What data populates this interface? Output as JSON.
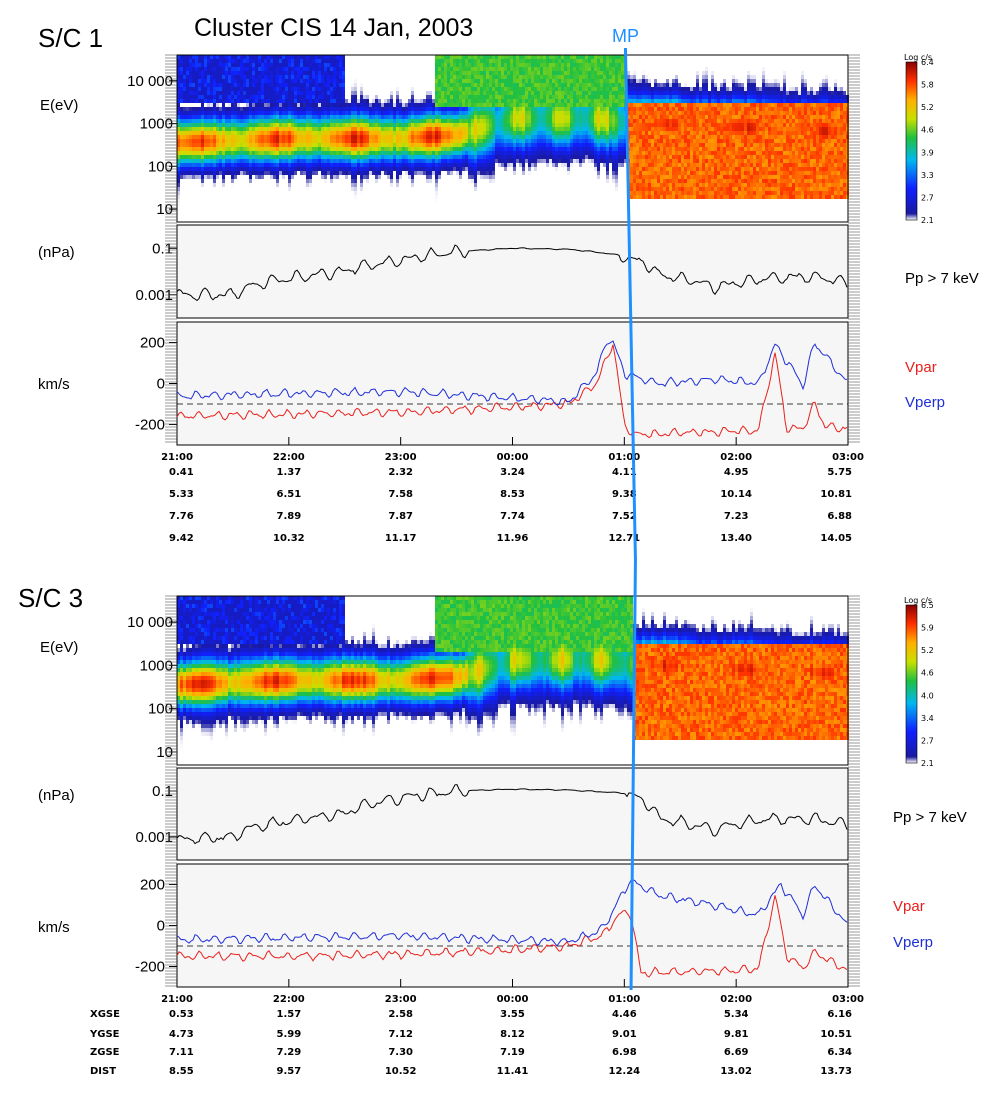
{
  "title": "Cluster CIS   14 Jan, 2003",
  "mp_label": "MP",
  "colors": {
    "mp_line": "#1e90ff",
    "vpar": "#e8211c",
    "vperp": "#1f2fd6",
    "pressure": "#000000",
    "panel_bg": "#f6f6f6"
  },
  "time_ticks": [
    "21:00",
    "22:00",
    "23:00",
    "00:00",
    "01:00",
    "02:00",
    "03:00"
  ],
  "panels": [
    {
      "spacecraft": "S/C 1",
      "mp_time_h": 4.01,
      "energy": {
        "ylabel": "E(eV)",
        "ticks": [
          "10 000",
          "1000",
          "100",
          "10"
        ]
      },
      "colorbar": {
        "unit": "Log c/s",
        "ticks": [
          "6.4",
          "5.8",
          "5.2",
          "4.6",
          "3.9",
          "3.3",
          "2.7",
          "2.1"
        ]
      },
      "pressure": {
        "ylabel": "(nPa)",
        "ticks": [
          "0.1",
          "0.001"
        ],
        "legend": "Pp > 7 keV"
      },
      "velocity": {
        "ylabel": "km/s",
        "ticks": [
          "200",
          "0",
          "-200"
        ],
        "ylim": [
          -300,
          300
        ],
        "legend": [
          "Vpar",
          "Vperp"
        ]
      },
      "ephemeris": {
        "labels": [
          "",
          "",
          "",
          ""
        ],
        "rows": [
          [
            "0.41",
            "1.37",
            "2.32",
            "3.24",
            "4.11",
            "4.95",
            "5.75"
          ],
          [
            "5.33",
            "6.51",
            "7.58",
            "8.53",
            "9.38",
            "10.14",
            "10.81"
          ],
          [
            "7.76",
            "7.89",
            "7.87",
            "7.74",
            "7.52",
            "7.23",
            "6.88"
          ],
          [
            "9.42",
            "10.32",
            "11.17",
            "11.96",
            "12.71",
            "13.40",
            "14.05"
          ]
        ]
      }
    },
    {
      "spacecraft": "S/C 3",
      "mp_time_h": 4.06,
      "energy": {
        "ylabel": "E(eV)",
        "ticks": [
          "10 000",
          "1000",
          "100",
          "10"
        ]
      },
      "colorbar": {
        "unit": "Log c/s",
        "ticks": [
          "6.5",
          "5.9",
          "5.2",
          "4.6",
          "4.0",
          "3.4",
          "2.7",
          "2.1"
        ]
      },
      "pressure": {
        "ylabel": "(nPa)",
        "ticks": [
          "0.1",
          "0.001"
        ],
        "legend": "Pp > 7 keV"
      },
      "velocity": {
        "ylabel": "km/s",
        "ticks": [
          "200",
          "0",
          "-200"
        ],
        "ylim": [
          -300,
          300
        ],
        "legend": [
          "Vpar",
          "Vperp"
        ]
      },
      "ephemeris": {
        "labels": [
          "XGSE",
          "YGSE",
          "ZGSE",
          "DIST"
        ],
        "rows": [
          [
            "0.53",
            "1.57",
            "2.58",
            "3.55",
            "4.46",
            "5.34",
            "6.16"
          ],
          [
            "4.73",
            "5.99",
            "7.12",
            "8.12",
            "9.01",
            "9.81",
            "10.51"
          ],
          [
            "7.11",
            "7.29",
            "7.30",
            "7.19",
            "6.98",
            "6.69",
            "6.34"
          ],
          [
            "8.55",
            "9.57",
            "10.52",
            "11.41",
            "12.24",
            "13.02",
            "13.73"
          ]
        ]
      }
    }
  ],
  "chart_data": [
    {
      "type": "heatmap",
      "title": "Cluster CIS   14 Jan, 2003",
      "spacecraft": "S/C 1",
      "xlabel": "",
      "x_ticks": [
        "21:00",
        "22:00",
        "23:00",
        "00:00",
        "01:00",
        "02:00",
        "03:00"
      ],
      "xlim_hours_from_2100": [
        0,
        6
      ],
      "ylabel": "E(eV)",
      "y_scale": "log",
      "ylim": [
        5,
        40000
      ],
      "colorbar_range_log_cs": [
        2.1,
        6.4
      ],
      "peak_energy_eV": [
        {
          "t": 0.0,
          "e": 400
        },
        {
          "t": 1.0,
          "e": 500
        },
        {
          "t": 2.0,
          "e": 500
        },
        {
          "t": 2.5,
          "e": 600
        },
        {
          "t": 3.0,
          "e": 1500
        },
        {
          "t": 3.7,
          "e": 1500
        },
        {
          "t": 4.0,
          "e": 1200
        },
        {
          "t": 6.0,
          "e": 700
        }
      ]
    },
    {
      "type": "line",
      "spacecraft": "S/C 1",
      "ylabel": "(nPa)",
      "y_scale": "log",
      "ylim": [
        0.0001,
        1
      ],
      "series": [
        {
          "name": "Pp > 7 keV",
          "x": [
            0,
            0.5,
            1.0,
            1.5,
            2.0,
            2.5,
            3.0,
            3.5,
            3.95,
            4.3,
            4.8,
            5.3,
            5.7,
            6.0
          ],
          "y": [
            0.001,
            0.001,
            0.005,
            0.01,
            0.03,
            0.07,
            0.1,
            0.09,
            0.05,
            0.007,
            0.002,
            0.005,
            0.006,
            0.003
          ]
        }
      ]
    },
    {
      "type": "line",
      "spacecraft": "S/C 1",
      "ylabel": "km/s",
      "ylim": [
        -300,
        300
      ],
      "series": [
        {
          "name": "Vpar",
          "x": [
            0,
            1.0,
            2.0,
            3.0,
            3.5,
            3.75,
            3.9,
            4.0,
            4.1,
            5.0,
            5.2,
            5.35,
            5.45,
            5.6,
            5.7,
            5.8,
            6.0
          ],
          "y": [
            -160,
            -150,
            -140,
            -115,
            -100,
            0,
            200,
            -200,
            -250,
            -230,
            -230,
            150,
            -220,
            -220,
            -100,
            -210,
            -220
          ]
        },
        {
          "name": "Vperp",
          "x": [
            0,
            1.0,
            2.0,
            3.0,
            3.5,
            3.75,
            3.85,
            3.9,
            4.0,
            4.3,
            4.8,
            5.2,
            5.35,
            5.6,
            5.7,
            6.0
          ],
          "y": [
            -60,
            -50,
            -40,
            -70,
            -90,
            50,
            220,
            200,
            50,
            0,
            20,
            0,
            190,
            -10,
            200,
            0
          ]
        }
      ]
    },
    {
      "type": "heatmap",
      "spacecraft": "S/C 3",
      "xlabel": "",
      "x_ticks": [
        "21:00",
        "22:00",
        "23:00",
        "00:00",
        "01:00",
        "02:00",
        "03:00"
      ],
      "xlim_hours_from_2100": [
        0,
        6
      ],
      "ylabel": "E(eV)",
      "y_scale": "log",
      "ylim": [
        5,
        40000
      ],
      "colorbar_range_log_cs": [
        2.1,
        6.5
      ],
      "peak_energy_eV": [
        {
          "t": 0.0,
          "e": 400
        },
        {
          "t": 1.0,
          "e": 500
        },
        {
          "t": 2.0,
          "e": 500
        },
        {
          "t": 2.5,
          "e": 600
        },
        {
          "t": 3.0,
          "e": 1500
        },
        {
          "t": 3.8,
          "e": 1500
        },
        {
          "t": 4.05,
          "e": 1200
        },
        {
          "t": 6.0,
          "e": 700
        }
      ]
    },
    {
      "type": "line",
      "spacecraft": "S/C 3",
      "ylabel": "(nPa)",
      "y_scale": "log",
      "ylim": [
        0.0001,
        1
      ],
      "series": [
        {
          "name": "Pp > 7 keV",
          "x": [
            0,
            0.5,
            1.0,
            1.5,
            2.0,
            2.5,
            3.0,
            3.5,
            4.0,
            4.3,
            4.8,
            5.3,
            5.7,
            6.0
          ],
          "y": [
            0.0008,
            0.001,
            0.005,
            0.01,
            0.05,
            0.1,
            0.12,
            0.11,
            0.08,
            0.006,
            0.002,
            0.006,
            0.006,
            0.003
          ]
        }
      ]
    },
    {
      "type": "line",
      "spacecraft": "S/C 3",
      "ylabel": "km/s",
      "ylim": [
        -300,
        300
      ],
      "series": [
        {
          "name": "Vpar",
          "x": [
            0,
            1.0,
            2.0,
            3.0,
            3.5,
            3.8,
            3.95,
            4.05,
            4.15,
            5.0,
            5.2,
            5.35,
            5.45,
            5.6,
            5.7,
            6.0
          ],
          "y": [
            -150,
            -150,
            -140,
            -120,
            -100,
            -50,
            50,
            70,
            -230,
            -220,
            -210,
            150,
            -150,
            -210,
            -130,
            -220
          ]
        },
        {
          "name": "Vperp",
          "x": [
            0,
            1.0,
            2.0,
            3.0,
            3.5,
            3.8,
            3.95,
            4.05,
            4.3,
            4.8,
            5.2,
            5.4,
            5.6,
            5.7,
            6.0
          ],
          "y": [
            -70,
            -60,
            -50,
            -70,
            -80,
            -20,
            120,
            220,
            150,
            100,
            50,
            200,
            50,
            200,
            0
          ]
        }
      ]
    }
  ]
}
